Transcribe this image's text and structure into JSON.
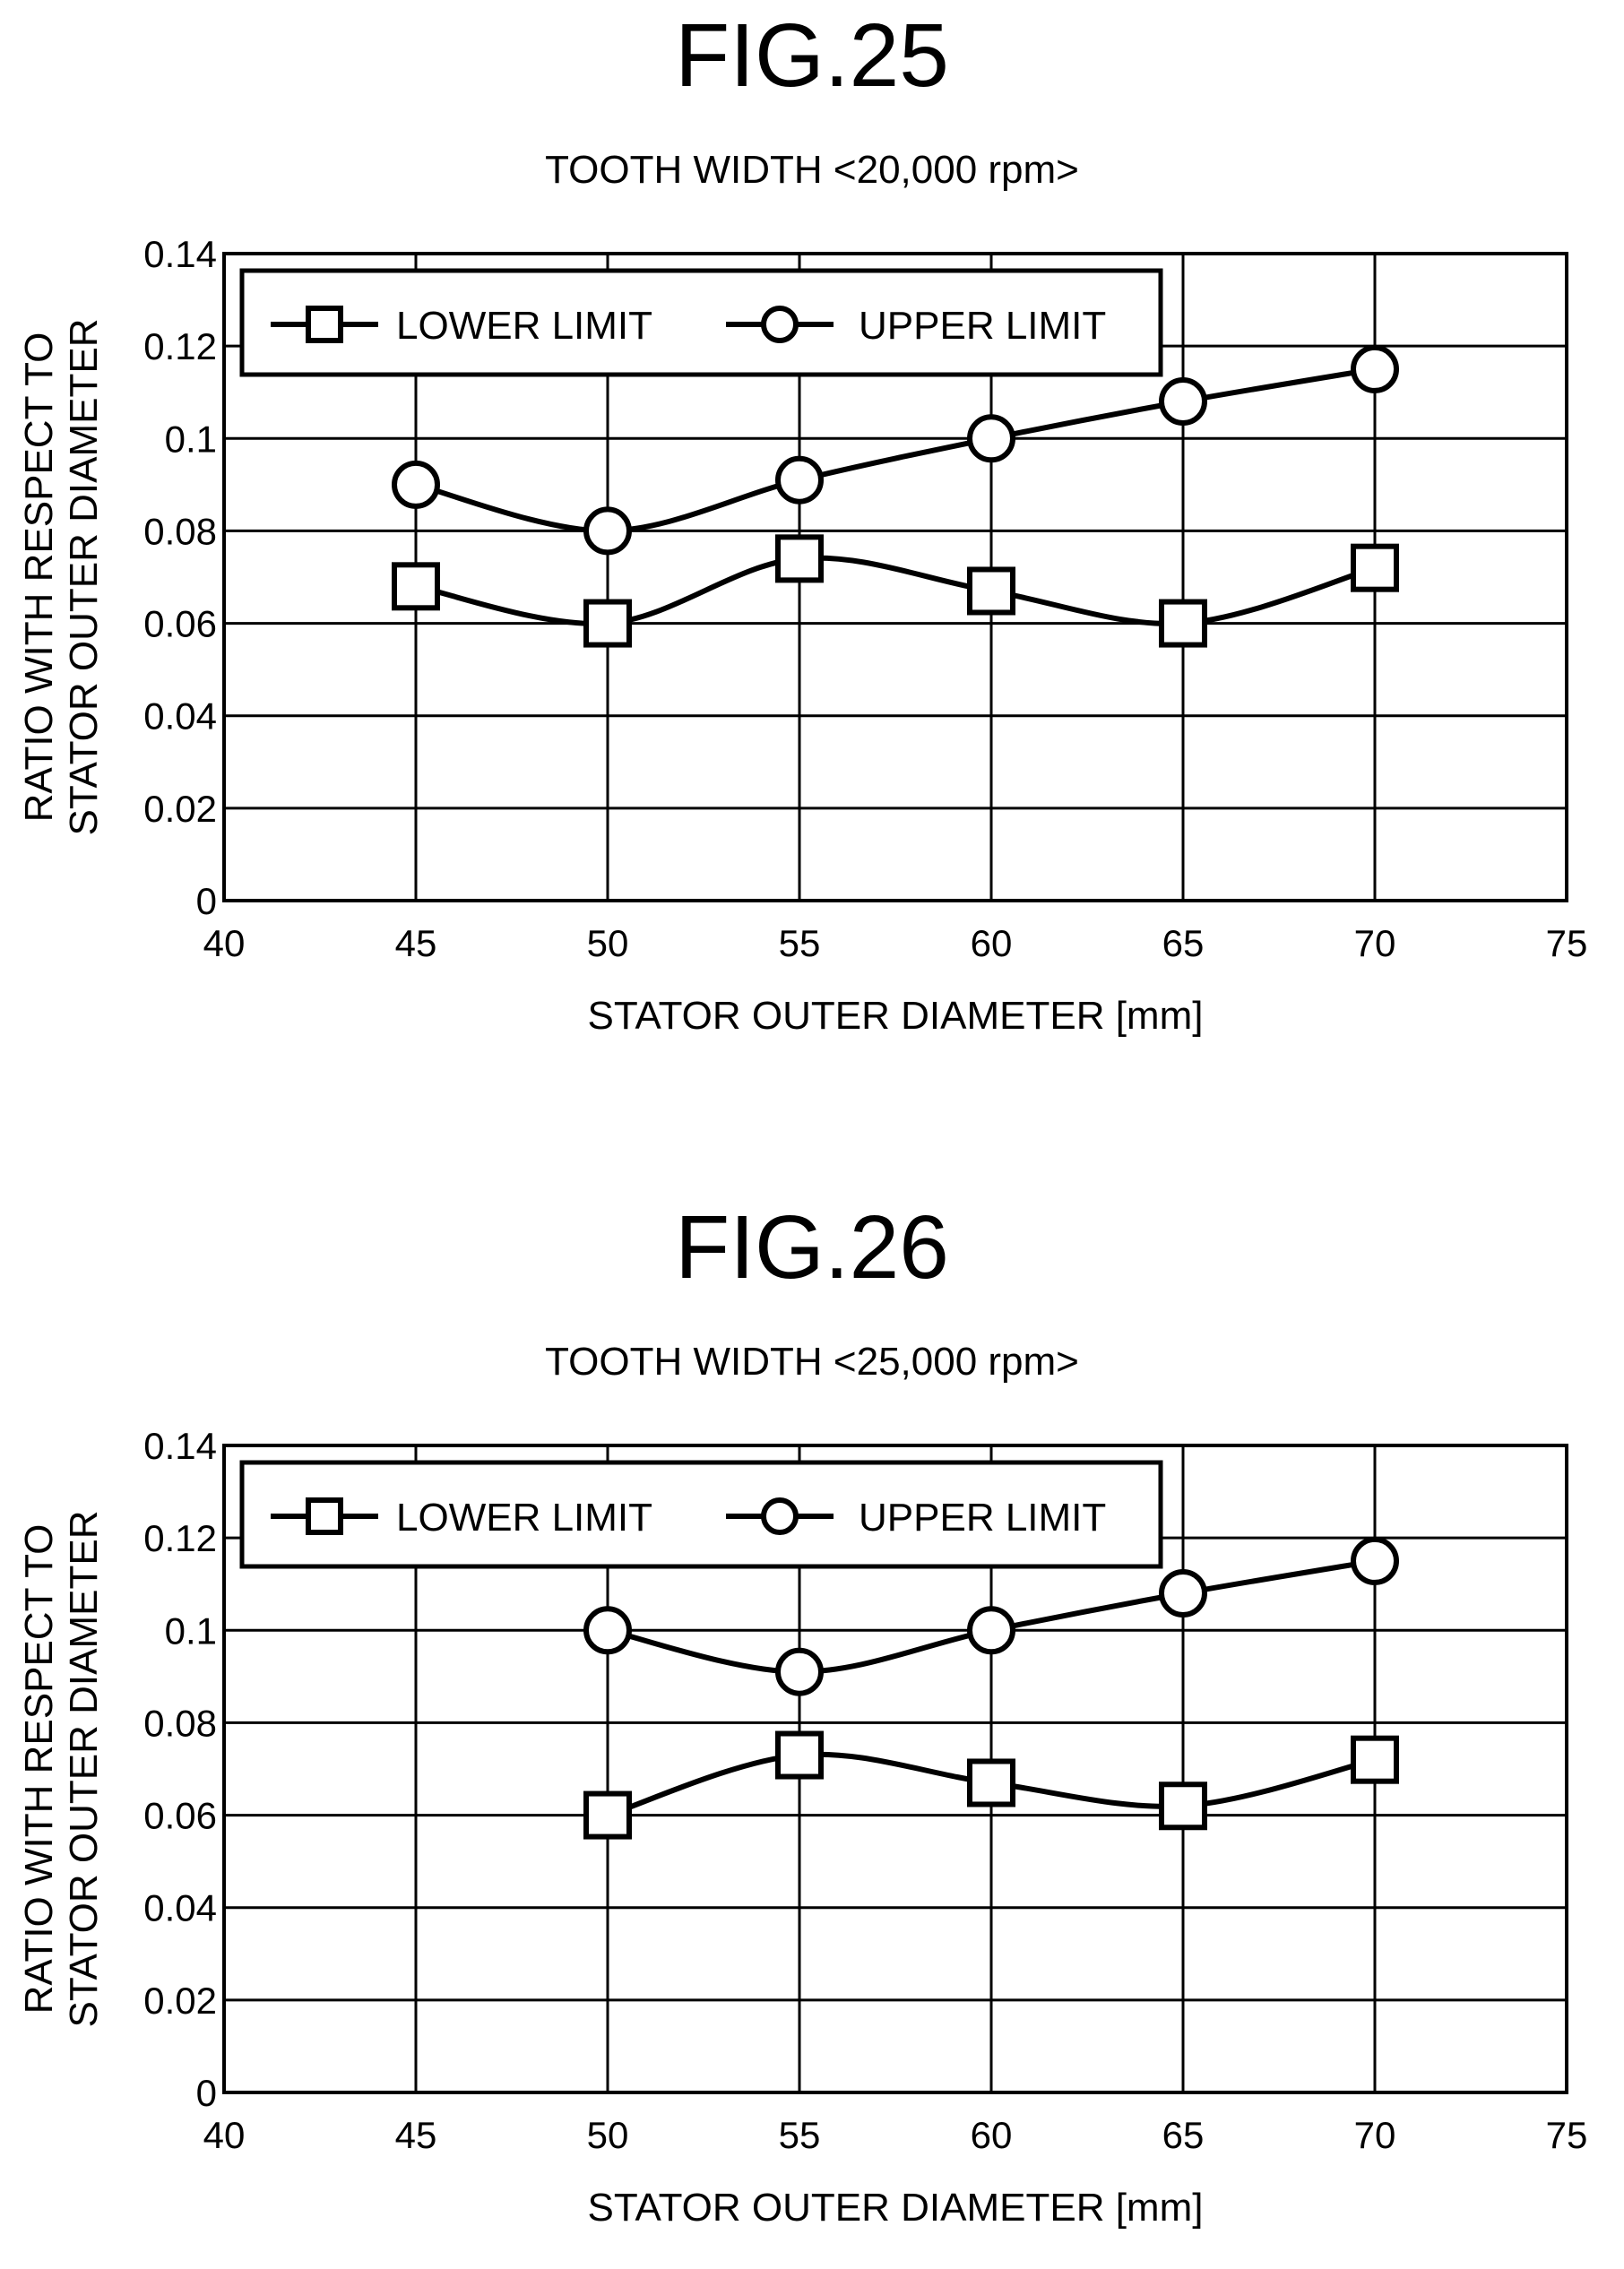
{
  "figures": [
    {
      "label": "FIG.25",
      "chart_data": {
        "type": "line",
        "title": "TOOTH WIDTH <20,000 rpm>",
        "xlabel": "STATOR OUTER DIAMETER [mm]",
        "ylabel": [
          "RATIO WITH RESPECT TO",
          "STATOR OUTER DIAMETER"
        ],
        "xlim": [
          40,
          75
        ],
        "ylim": [
          0,
          0.14
        ],
        "xticks": [
          "40",
          "45",
          "50",
          "55",
          "60",
          "65",
          "70",
          "75"
        ],
        "yticks": [
          "0",
          "0.02",
          "0.04",
          "0.06",
          "0.08",
          "0.1",
          "0.12",
          "0.14"
        ],
        "grid": true,
        "legend_position": "top-left",
        "series": [
          {
            "name": "LOWER LIMIT",
            "marker": "square",
            "x": [
              45,
              50,
              55,
              60,
              65,
              70
            ],
            "y": [
              0.068,
              0.06,
              0.074,
              0.067,
              0.06,
              0.072
            ]
          },
          {
            "name": "UPPER LIMIT",
            "marker": "circle",
            "x": [
              45,
              50,
              55,
              60,
              65,
              70
            ],
            "y": [
              0.09,
              0.08,
              0.091,
              0.1,
              0.108,
              0.115
            ]
          }
        ]
      }
    },
    {
      "label": "FIG.26",
      "chart_data": {
        "type": "line",
        "title": "TOOTH WIDTH <25,000 rpm>",
        "xlabel": "STATOR OUTER DIAMETER [mm]",
        "ylabel": [
          "RATIO WITH RESPECT TO",
          "STATOR OUTER DIAMETER"
        ],
        "xlim": [
          40,
          75
        ],
        "ylim": [
          0,
          0.14
        ],
        "xticks": [
          "40",
          "45",
          "50",
          "55",
          "60",
          "65",
          "70",
          "75"
        ],
        "yticks": [
          "0",
          "0.02",
          "0.04",
          "0.06",
          "0.08",
          "0.1",
          "0.12",
          "0.14"
        ],
        "grid": true,
        "legend_position": "top-left",
        "series": [
          {
            "name": "LOWER LIMIT",
            "marker": "square",
            "x": [
              50,
              55,
              60,
              65,
              70
            ],
            "y": [
              0.06,
              0.073,
              0.067,
              0.062,
              0.072
            ]
          },
          {
            "name": "UPPER LIMIT",
            "marker": "circle",
            "x": [
              50,
              55,
              60,
              65,
              70
            ],
            "y": [
              0.1,
              0.091,
              0.1,
              0.108,
              0.115
            ]
          }
        ]
      }
    }
  ]
}
